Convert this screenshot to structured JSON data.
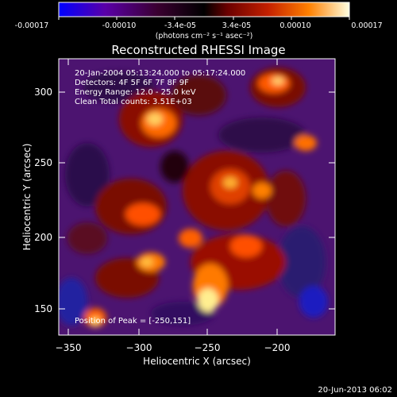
{
  "colorbar": {
    "tick_labels": [
      "-0.00017",
      "-0.00010",
      "-3.4e-05",
      "3.4e-05",
      "0.00010",
      "0.00017"
    ],
    "unit_label": "(photons cm⁻² s⁻¹ asec⁻²)",
    "stops": [
      "#0000ff",
      "#5a00a8",
      "#3a0030",
      "#000000",
      "#6a0000",
      "#c42000",
      "#ff8000",
      "#ffffe0"
    ]
  },
  "plot": {
    "title": "Reconstructed RHESSI Image",
    "xlabel": "Heliocentric X (arcsec)",
    "ylabel": "Heliocentric Y (arcsec)",
    "x_ticks": [
      "−350",
      "−300",
      "−250",
      "−200"
    ],
    "y_ticks": [
      "300",
      "250",
      "200",
      "150"
    ],
    "x_range": [
      -350,
      -160
    ],
    "y_range": [
      130,
      325
    ]
  },
  "annotations": {
    "time_range": "20-Jan-2004 05:13:24.000 to 05:17:24.000",
    "detectors": "Detectors: 4F 5F 6F 7F 8F 9F",
    "energy": "Energy Range: 12.0 - 25.0 keV",
    "clean": "Clean    Total counts: 3.51E+03",
    "peak": "Position of Peak = [-250,151]"
  },
  "footer": {
    "timestamp": "20-Jun-2013 06:02"
  }
}
